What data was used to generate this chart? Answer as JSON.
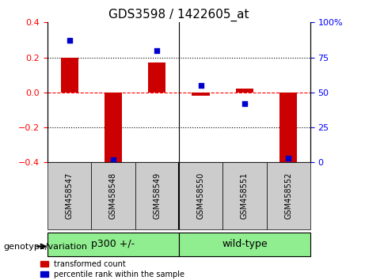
{
  "title": "GDS3598 / 1422605_at",
  "samples": [
    "GSM458547",
    "GSM458548",
    "GSM458549",
    "GSM458550",
    "GSM458551",
    "GSM458552"
  ],
  "red_values": [
    0.2,
    -0.4,
    0.17,
    -0.02,
    0.02,
    -0.4
  ],
  "blue_values": [
    87,
    2,
    80,
    55,
    42,
    3
  ],
  "ylim_left": [
    -0.4,
    0.4
  ],
  "ylim_right": [
    0,
    100
  ],
  "yticks_left": [
    -0.4,
    -0.2,
    0,
    0.2,
    0.4
  ],
  "yticks_right": [
    0,
    25,
    50,
    75,
    100
  ],
  "ytick_labels_right": [
    "0",
    "25",
    "50",
    "75",
    "100%"
  ],
  "hlines": [
    0.2,
    0.0,
    -0.2
  ],
  "groups": [
    {
      "label": "p300 +/-",
      "indices": [
        0,
        1,
        2
      ],
      "color": "#90EE90"
    },
    {
      "label": "wild-type",
      "indices": [
        3,
        4,
        5
      ],
      "color": "#90EE90"
    }
  ],
  "group_separator": 2.5,
  "red_color": "#CC0000",
  "blue_color": "#0000CC",
  "bar_width": 0.4,
  "legend_red": "transformed count",
  "legend_blue": "percentile rank within the sample",
  "genotype_label": "genotype/variation",
  "tick_bg_color": "#CCCCCC",
  "group_bg_color": "#90EE90",
  "plot_bg_color": "#FFFFFF",
  "figsize": [
    4.61,
    3.54
  ],
  "dpi": 100
}
